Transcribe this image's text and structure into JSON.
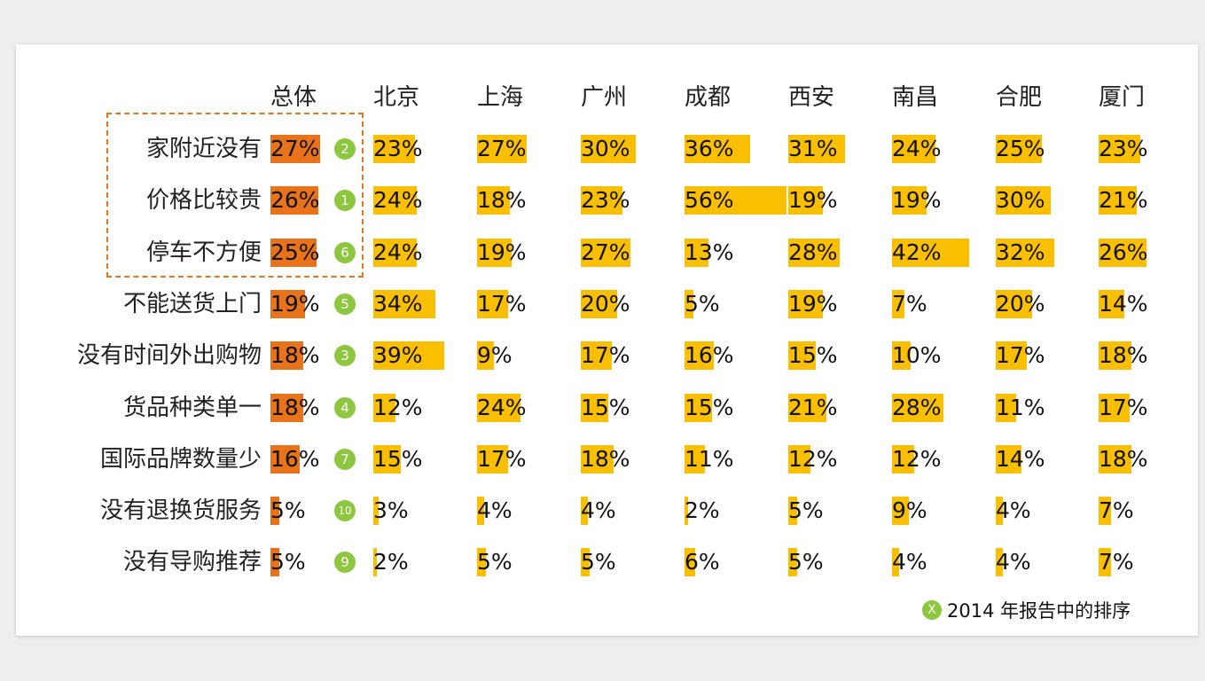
{
  "colors": {
    "overall_bar": "#e8731a",
    "city_bar": "#f9bf00",
    "rank_badge": "#8dc63f",
    "highlight_border": "#e8741a"
  },
  "chart_data": {
    "type": "table",
    "columns": [
      "总体",
      "北京",
      "上海",
      "广州",
      "成都",
      "西安",
      "南昌",
      "合肥",
      "厦门"
    ],
    "rows": [
      {
        "label": "家附近没有",
        "rank": "2",
        "values": [
          27,
          23,
          27,
          30,
          36,
          31,
          24,
          25,
          23
        ]
      },
      {
        "label": "价格比较贵",
        "rank": "1",
        "values": [
          26,
          24,
          18,
          23,
          56,
          19,
          19,
          30,
          21
        ]
      },
      {
        "label": "停车不方便",
        "rank": "6",
        "values": [
          25,
          24,
          19,
          27,
          13,
          28,
          42,
          32,
          26
        ]
      },
      {
        "label": "不能送货上门",
        "rank": "5",
        "values": [
          19,
          34,
          17,
          20,
          5,
          19,
          7,
          20,
          14
        ]
      },
      {
        "label": "没有时间外出购物",
        "rank": "3",
        "values": [
          18,
          39,
          9,
          17,
          16,
          15,
          10,
          17,
          18
        ]
      },
      {
        "label": "货品种类单一",
        "rank": "4",
        "values": [
          18,
          12,
          24,
          15,
          15,
          21,
          28,
          11,
          17
        ]
      },
      {
        "label": "国际品牌数量少",
        "rank": "7",
        "values": [
          16,
          15,
          17,
          18,
          11,
          12,
          12,
          14,
          18
        ]
      },
      {
        "label": "没有退换货服务",
        "rank": "10",
        "values": [
          5,
          3,
          4,
          4,
          2,
          5,
          9,
          4,
          7
        ]
      },
      {
        "label": "没有导购推荐",
        "rank": "9",
        "values": [
          5,
          2,
          5,
          5,
          6,
          5,
          4,
          4,
          7
        ]
      }
    ],
    "value_suffix": "%",
    "highlighted_rows": 3
  },
  "legend": {
    "mark": "X",
    "text": "2014 年报告中的排序"
  }
}
